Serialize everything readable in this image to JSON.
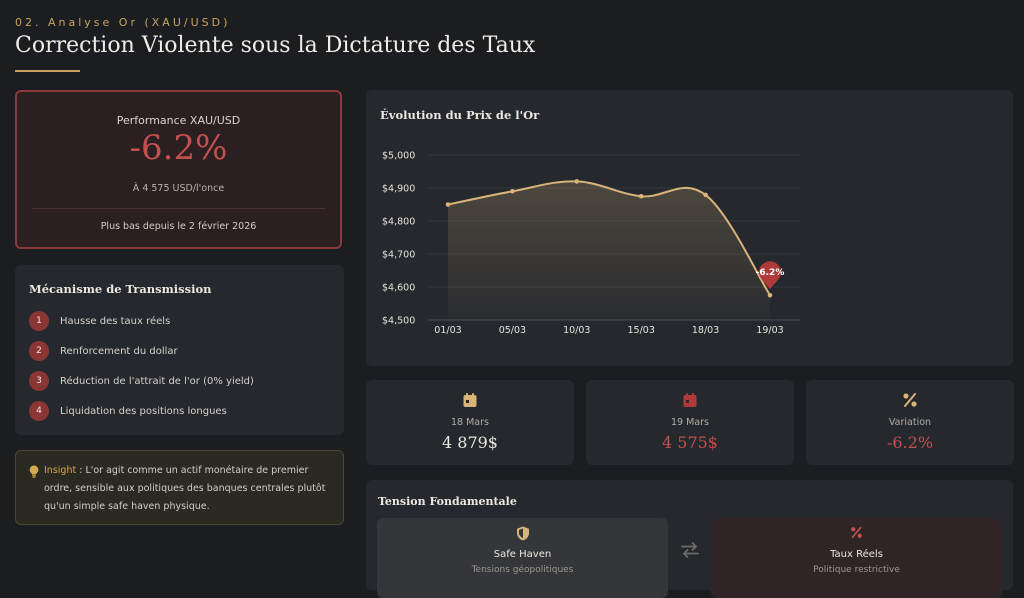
{
  "header": {
    "kicker": "02. Analyse Or (XAU/USD)",
    "title": "Correction Violente sous la Dictature des Taux"
  },
  "performance": {
    "label": "Performance XAU/USD",
    "value": "-6.2%",
    "price": "À 4 575 USD/l'once",
    "low": "Plus bas depuis le 2 février 2026"
  },
  "mechanism": {
    "title": "Mécanisme de Transmission",
    "steps": [
      {
        "num": "1",
        "label": "Hausse des taux réels"
      },
      {
        "num": "2",
        "label": "Renforcement du dollar"
      },
      {
        "num": "3",
        "label": "Réduction de l'attrait de l'or (0% yield)"
      },
      {
        "num": "4",
        "label": "Liquidation des positions longues"
      }
    ]
  },
  "insight": {
    "key": "Insight",
    "text": " : L'or agit comme un actif monétaire de premier ordre, sensible aux politiques des banques centrales plutôt qu'un simple safe haven physique."
  },
  "chart_card": {
    "title": "Évolution du Prix de l'Or"
  },
  "chart_data": {
    "type": "line",
    "title": "Évolution du Prix de l'Or",
    "categories": [
      "01/03",
      "05/03",
      "10/03",
      "15/03",
      "18/03",
      "19/03"
    ],
    "series": [
      {
        "values": [
          4850,
          4890,
          4920,
          4875,
          4879,
          4575
        ]
      }
    ],
    "y_ticks": [
      "$4,500",
      "$4,600",
      "$4,700",
      "$4,800",
      "$4,900",
      "$5,000"
    ],
    "ylim": [
      4500,
      5000
    ],
    "annotation": "-6.2%",
    "grid": true,
    "line_color": "#d8b47a",
    "annotation_color": "#b03a3a"
  },
  "stats": [
    {
      "icon": "calendar-icon",
      "label": "18 Mars",
      "value": "4 879$",
      "color": "#ece8e0"
    },
    {
      "icon": "calendar-icon",
      "label": "19 Mars",
      "value": "4 575$",
      "color": "#c4504d"
    },
    {
      "icon": "percent-icon",
      "label": "Variation",
      "value": "-6.2%",
      "color": "#c4504d"
    }
  ],
  "tension": {
    "title": "Tension Fondamentale",
    "left": {
      "title": "Safe Haven",
      "sub": "Tensions géopolitiques"
    },
    "right": {
      "title": "Taux Réels",
      "sub": "Politique restrictive"
    }
  },
  "colors": {
    "accent": "#c9a35e",
    "negative": "#c4504d"
  }
}
